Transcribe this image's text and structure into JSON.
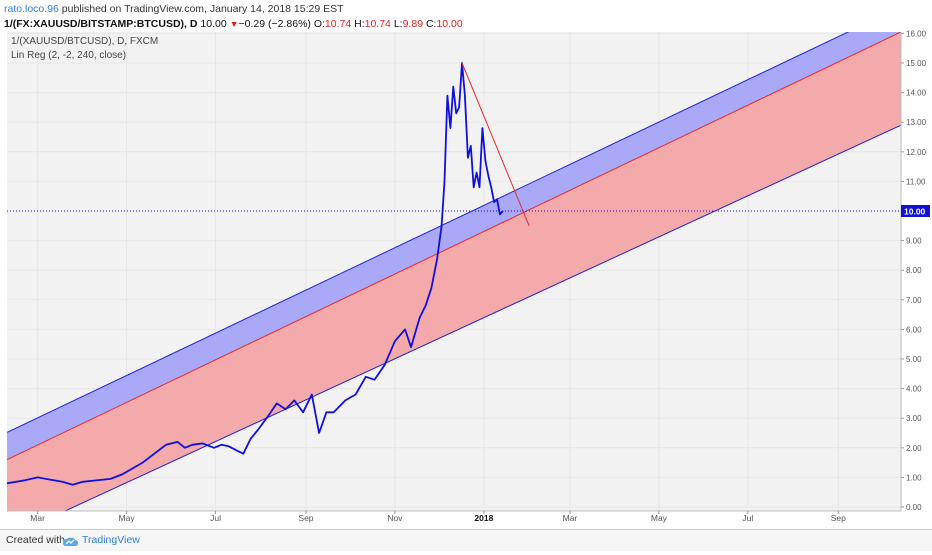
{
  "header": {
    "author": "rato.loco.96",
    "published": "published on TradingView.com, January 14, 2018 15:29 EST",
    "symbol": "1/(FX:XAUUSD/BITSTAMP:BTCUSD), D",
    "last": "10.00",
    "change": "−0.29 (−2.86%)",
    "open_label": "O:",
    "open": "10.74",
    "high_label": "H:",
    "high": "10.74",
    "low_label": "L:",
    "low": "9.89",
    "close_label": "C:",
    "close": "10.00"
  },
  "legend": {
    "line1": "1/(XAUUSD/BTCUSD), D, FXCM",
    "line2": "Lin Reg (2, -2, 240, close)"
  },
  "footer": {
    "created": "Created with",
    "brand": "TradingView"
  },
  "colors": {
    "price_line": "#1010d8",
    "upper_band": "#a9a9f7",
    "lower_band": "#f4a9ab",
    "mid_line": "#e8282b",
    "bound_line": "#2121d0",
    "trend_line": "#e8282b",
    "last_price_badge": "#1010d8",
    "plot_bg": "#f2f2f2"
  },
  "chart_data": {
    "type": "line",
    "x_axis": {
      "ticks": [
        "Mar",
        "May",
        "Jul",
        "Sep",
        "Nov",
        "2018",
        "Mar",
        "May",
        "Jul",
        "Sep"
      ],
      "bold": [
        "2018"
      ],
      "range": [
        "2017-02-08",
        "2018-10-14"
      ]
    },
    "y_axis": {
      "ticks": [
        "0.00",
        "1.00",
        "2.00",
        "3.00",
        "4.00",
        "5.00",
        "6.00",
        "7.00",
        "8.00",
        "9.00",
        "10.00",
        "11.00",
        "12.00",
        "13.00",
        "14.00",
        "15.00",
        "16.00"
      ],
      "range": [
        0,
        16
      ],
      "last_value_label": "10.00"
    },
    "price_series": {
      "x": [
        "2017-02-08",
        "2017-02-20",
        "2017-03-01",
        "2017-03-10",
        "2017-03-18",
        "2017-03-25",
        "2017-04-01",
        "2017-04-10",
        "2017-04-20",
        "2017-04-28",
        "2017-05-05",
        "2017-05-12",
        "2017-05-20",
        "2017-05-28",
        "2017-06-05",
        "2017-06-10",
        "2017-06-15",
        "2017-06-22",
        "2017-06-30",
        "2017-07-05",
        "2017-07-10",
        "2017-07-16",
        "2017-07-20",
        "2017-07-25",
        "2017-07-30",
        "2017-08-05",
        "2017-08-12",
        "2017-08-18",
        "2017-08-24",
        "2017-08-30",
        "2017-09-05",
        "2017-09-10",
        "2017-09-15",
        "2017-09-20",
        "2017-09-28",
        "2017-10-05",
        "2017-10-12",
        "2017-10-18",
        "2017-10-25",
        "2017-11-01",
        "2017-11-08",
        "2017-11-12",
        "2017-11-18",
        "2017-11-22",
        "2017-11-26",
        "2017-11-30",
        "2017-12-03",
        "2017-12-05",
        "2017-12-07",
        "2017-12-09",
        "2017-12-11",
        "2017-12-13",
        "2017-12-15",
        "2017-12-17",
        "2017-12-19",
        "2017-12-21",
        "2017-12-23",
        "2017-12-25",
        "2017-12-27",
        "2017-12-29",
        "2017-12-31",
        "2018-01-02",
        "2018-01-04",
        "2018-01-06",
        "2018-01-08",
        "2018-01-10",
        "2018-01-12",
        "2018-01-14"
      ],
      "y": [
        0.8,
        0.9,
        1.0,
        0.92,
        0.85,
        0.75,
        0.85,
        0.9,
        0.95,
        1.1,
        1.3,
        1.5,
        1.8,
        2.1,
        2.2,
        2.0,
        2.1,
        2.15,
        2.0,
        2.1,
        2.05,
        1.9,
        1.8,
        2.3,
        2.6,
        3.0,
        3.5,
        3.3,
        3.6,
        3.2,
        3.8,
        2.5,
        3.2,
        3.2,
        3.6,
        3.8,
        4.4,
        4.3,
        4.8,
        5.6,
        6.0,
        5.4,
        6.4,
        6.8,
        7.4,
        8.4,
        9.5,
        11.0,
        13.9,
        12.8,
        14.2,
        13.3,
        13.5,
        15.0,
        13.9,
        11.8,
        12.2,
        10.8,
        11.3,
        10.8,
        12.8,
        11.7,
        11.2,
        10.8,
        10.3,
        10.4,
        9.89,
        10.0
      ]
    },
    "regression_channel": {
      "center": {
        "x": [
          "2017-02-08",
          "2018-10-14"
        ],
        "y": [
          1.6,
          16.05
        ]
      },
      "upper": {
        "x": [
          "2017-02-08",
          "2018-10-14"
        ],
        "y": [
          2.52,
          16.9
        ]
      },
      "lower": {
        "x": [
          "2017-02-08",
          "2018-10-14"
        ],
        "y": [
          -1.04,
          12.9
        ]
      }
    },
    "trend_line": {
      "x": [
        "2017-12-17",
        "2018-02-01"
      ],
      "y": [
        15.0,
        9.5
      ]
    },
    "last_price_line": 10.0
  }
}
